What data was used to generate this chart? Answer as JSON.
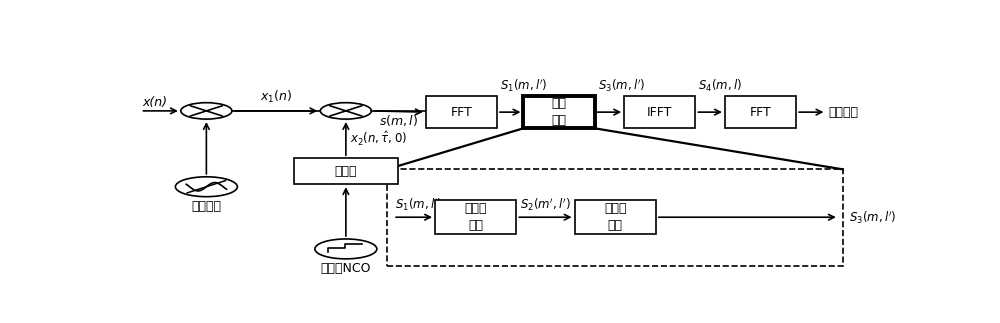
{
  "figsize": [
    10.0,
    3.23
  ],
  "dpi": 100,
  "bg_color": "white",
  "label_xn": "x(n)",
  "label_x1n": "$x_1(n)$",
  "label_sml": "$s(m,l)$",
  "label_rf": "射频本振",
  "label_nco": "单个码NCO",
  "label_spreadcode": "扩频码",
  "label_fft": "FFT",
  "label_wedge1": "橔形",
  "label_wedge2": "变换",
  "label_ifft": "IFFT",
  "label_fft2": "FFT",
  "label_capture": "捕获结果",
  "label_s1ml_bot": "$S_1(m,l')$",
  "label_s4ml": "$S_4(m,l)$",
  "label_s3top": "$S_3(m,l')$",
  "label_x2": "$x_2(n,\\hat{\\tau},0)$",
  "label_s2": "$S_2(m',l')$",
  "label_s1top": "$S_1(m,l')$",
  "label_stage1a": "第一级",
  "label_stage1b": "变换",
  "label_stage2a": "第二级",
  "label_stage2b": "变换",
  "label_s3bottom": "$S_3(m,l')$"
}
